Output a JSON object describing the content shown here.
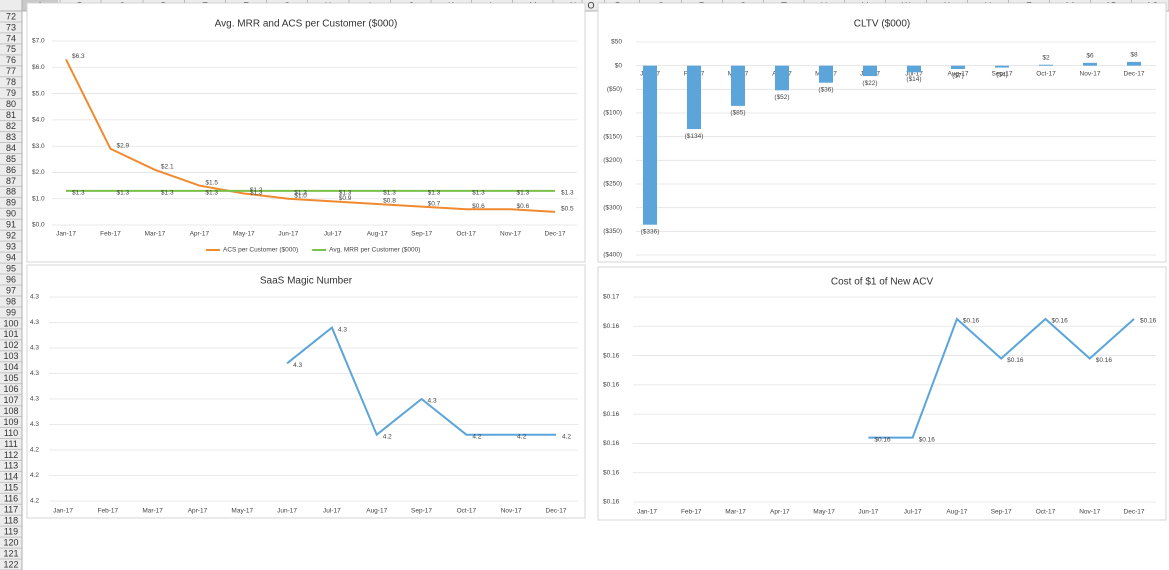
{
  "sheet": {
    "columns": [
      "A",
      "B",
      "C",
      "D",
      "E",
      "F",
      "G",
      "H",
      "I",
      "J",
      "K",
      "L",
      "M",
      "N",
      "O",
      "P",
      "Q",
      "R",
      "S",
      "T",
      "U",
      "V",
      "W",
      "X",
      "Y",
      "Z",
      "AA",
      "AB",
      "AC"
    ],
    "rows": [
      72,
      73,
      74,
      75,
      76,
      77,
      78,
      79,
      80,
      81,
      82,
      83,
      84,
      85,
      86,
      87,
      88,
      89,
      90,
      91,
      92,
      93,
      94,
      95,
      96,
      97,
      98,
      99,
      100,
      101,
      102,
      103,
      104,
      105,
      106,
      107,
      108,
      109,
      110,
      111,
      112,
      113,
      114,
      115,
      116,
      117,
      118,
      119,
      120,
      121,
      122
    ]
  },
  "chart_data": [
    {
      "type": "line",
      "title": "Avg. MRR and ACS per Customer ($000)",
      "legend": "bottom",
      "grid": true,
      "categories": [
        "Jan-17",
        "Feb-17",
        "Mar-17",
        "Apr-17",
        "May-17",
        "Jun-17",
        "Jul-17",
        "Aug-17",
        "Sep-17",
        "Oct-17",
        "Nov-17",
        "Dec-17"
      ],
      "ylim": [
        0,
        7
      ],
      "yticks": [
        {
          "value": 0,
          "label": "$0.0"
        },
        {
          "value": 1,
          "label": "$1.0"
        },
        {
          "value": 2,
          "label": "$2.0"
        },
        {
          "value": 3,
          "label": "$3.0"
        },
        {
          "value": 4,
          "label": "$4.0"
        },
        {
          "value": 5,
          "label": "$5.0"
        },
        {
          "value": 6,
          "label": "$6.0"
        },
        {
          "value": 7,
          "label": "$7.0"
        }
      ],
      "series": [
        {
          "name": "ACS per Customer ($000)",
          "color": "#f08a30",
          "values": [
            6.3,
            2.9,
            2.1,
            1.5,
            1.2,
            1.0,
            0.9,
            0.8,
            0.7,
            0.6,
            0.6,
            0.5
          ],
          "value_labels": [
            "$6.3",
            "$2.9",
            "$2.1",
            "$1.5",
            "$1.2",
            "$1.0",
            "$0.9",
            "$0.8",
            "$0.7",
            "$0.6",
            "$0.6",
            "$0.5"
          ]
        },
        {
          "name": "Avg. MRR per Customer ($000)",
          "color": "#7cc04a",
          "values": [
            1.3,
            1.3,
            1.3,
            1.3,
            1.3,
            1.3,
            1.3,
            1.3,
            1.3,
            1.3,
            1.3,
            1.3
          ],
          "value_labels": [
            "$1.3",
            "$1.3",
            "$1.3",
            "$1.3",
            "$1.3",
            "$1.3",
            "$1.3",
            "$1.3",
            "$1.3",
            "$1.3",
            "$1.3",
            "$1.3"
          ]
        }
      ]
    },
    {
      "type": "bar",
      "title": "CLTV ($000)",
      "grid": true,
      "color": "#5ba5da",
      "negative_label_color": "#e0201c",
      "categories": [
        "Jan-17",
        "Feb-17",
        "Mar-17",
        "Apr-17",
        "May-17",
        "Jun-17",
        "Jul-17",
        "Aug-17",
        "Sep-17",
        "Oct-17",
        "Nov-17",
        "Dec-17"
      ],
      "values": [
        -336,
        -134,
        -85,
        -52,
        -36,
        -22,
        -14,
        -7,
        -4,
        2,
        6,
        8
      ],
      "value_labels": [
        "($336)",
        "($134)",
        "($85)",
        "($52)",
        "($36)",
        "($22)",
        "($14)",
        "($7)",
        "($4)",
        "$2",
        "$6",
        "$8"
      ],
      "ylim": [
        -400,
        50
      ],
      "yticks": [
        {
          "value": 50,
          "label": "$50"
        },
        {
          "value": 0,
          "label": "$0"
        },
        {
          "value": -50,
          "label": "($50)"
        },
        {
          "value": -100,
          "label": "($100)"
        },
        {
          "value": -150,
          "label": "($150)"
        },
        {
          "value": -200,
          "label": "($200)"
        },
        {
          "value": -250,
          "label": "($250)"
        },
        {
          "value": -300,
          "label": "($300)"
        },
        {
          "value": -350,
          "label": "($350)"
        },
        {
          "value": -400,
          "label": "($400)"
        }
      ]
    },
    {
      "type": "line",
      "title": "SaaS Magic Number",
      "grid": true,
      "categories": [
        "Jan-17",
        "Feb-17",
        "Mar-17",
        "Apr-17",
        "May-17",
        "Jun-17",
        "Jul-17",
        "Aug-17",
        "Sep-17",
        "Oct-17",
        "Nov-17",
        "Dec-17"
      ],
      "ylim": [
        4.235,
        4.275
      ],
      "yticks": [
        {
          "value": 4.235,
          "label": "4.2"
        },
        {
          "value": 4.24,
          "label": "4.2"
        },
        {
          "value": 4.245,
          "label": "4.2"
        },
        {
          "value": 4.25,
          "label": "4.3"
        },
        {
          "value": 4.255,
          "label": "4.3"
        },
        {
          "value": 4.26,
          "label": "4.3"
        },
        {
          "value": 4.265,
          "label": "4.3"
        },
        {
          "value": 4.27,
          "label": "4.3"
        },
        {
          "value": 4.275,
          "label": "4.3"
        }
      ],
      "series": [
        {
          "color": "#5ba5da",
          "values": [
            null,
            null,
            null,
            null,
            null,
            4.262,
            4.269,
            4.248,
            4.255,
            4.248,
            4.248,
            4.248
          ],
          "value_labels": [
            null,
            null,
            null,
            null,
            null,
            "4.3",
            "4.3",
            "4.2",
            "4.3",
            "4.2",
            "4.2",
            "4.2"
          ]
        }
      ]
    },
    {
      "type": "line",
      "title": "Cost of $1 of New ACV",
      "grid": true,
      "categories": [
        "Jan-17",
        "Feb-17",
        "Mar-17",
        "Apr-17",
        "May-17",
        "Jun-17",
        "Jul-17",
        "Aug-17",
        "Sep-17",
        "Oct-17",
        "Nov-17",
        "Dec-17"
      ],
      "ylim": [
        0.158,
        0.165
      ],
      "yticks": [
        {
          "value": 0.158,
          "label": "$0.16"
        },
        {
          "value": 0.159,
          "label": "$0.16"
        },
        {
          "value": 0.16,
          "label": "$0.16"
        },
        {
          "value": 0.161,
          "label": "$0.16"
        },
        {
          "value": 0.162,
          "label": "$0.16"
        },
        {
          "value": 0.163,
          "label": "$0.16"
        },
        {
          "value": 0.164,
          "label": "$0.16"
        },
        {
          "value": 0.165,
          "label": "$0.17"
        }
      ],
      "series": [
        {
          "color": "#5ba5da",
          "values": [
            null,
            null,
            null,
            null,
            null,
            0.1602,
            0.1602,
            0.16425,
            0.1629,
            0.16425,
            0.1629,
            0.16425
          ],
          "value_labels": [
            null,
            null,
            null,
            null,
            null,
            "$0.16",
            "$0.16",
            "$0.16",
            "$0.16",
            "$0.16",
            "$0.16",
            "$0.16"
          ]
        }
      ]
    }
  ]
}
